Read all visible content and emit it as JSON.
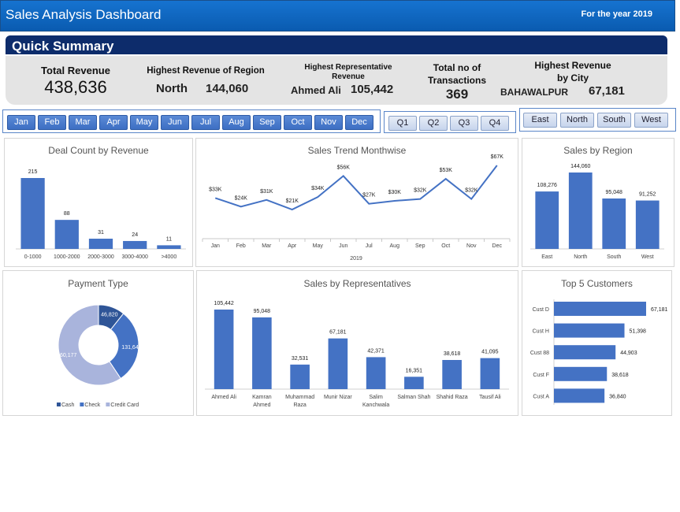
{
  "header": {
    "title": "Sales Analysis Dashboard",
    "year_label": "For the year 2019"
  },
  "summary": {
    "section_title": "Quick Summary",
    "total_revenue": {
      "label": "Total Revenue",
      "value": "438,636"
    },
    "highest_region": {
      "label": "Highest Revenue of Region",
      "name": "North",
      "value": "144,060"
    },
    "highest_rep": {
      "label_line1": "Highest Representative",
      "label_line2": "Revenue",
      "name": "Ahmed Ali",
      "value": "105,442"
    },
    "transactions": {
      "label_line1": "Total no of",
      "label_line2": "Transactions",
      "value": "369"
    },
    "highest_city": {
      "label_line1": "Highest Revenue",
      "label_line2": "by City",
      "name": "BAHAWALPUR",
      "value": "67,181"
    }
  },
  "slicers": {
    "months": [
      "Jan",
      "Feb",
      "Mar",
      "Apr",
      "May",
      "Jun",
      "Jul",
      "Aug",
      "Sep",
      "Oct",
      "Nov",
      "Dec"
    ],
    "quarters": [
      "Q1",
      "Q2",
      "Q3",
      "Q4"
    ],
    "regions": [
      "East",
      "North",
      "South",
      "West"
    ]
  },
  "colors": {
    "bar": "#4472c4",
    "navy": "#0d2c6b",
    "cash": "#2f5597",
    "check": "#4472c4",
    "credit": "#a9b4dc"
  },
  "chart_data": [
    {
      "id": "deal_count",
      "type": "bar",
      "title": "Deal Count by Revenue",
      "categories": [
        "0-1000",
        "1000-2000",
        "2000-3000",
        "3000-4000",
        ">4000"
      ],
      "values": [
        215,
        88,
        31,
        24,
        11
      ],
      "labels": [
        "215",
        "88",
        "31",
        "24",
        "11"
      ]
    },
    {
      "id": "sales_trend",
      "type": "line",
      "title": "Sales Trend Monthwise",
      "categories": [
        "Jan",
        "Feb",
        "Mar",
        "Apr",
        "May",
        "Jun",
        "Jul",
        "Aug",
        "Sep",
        "Oct",
        "Nov",
        "Dec"
      ],
      "values": [
        33,
        24,
        31,
        21,
        34,
        56,
        27,
        30,
        32,
        53,
        32,
        67
      ],
      "labels": [
        "$33K",
        "$24K",
        "$31K",
        "$21K",
        "$34K",
        "$56K",
        "$27K",
        "$30K",
        "$32K",
        "$53K",
        "$32K",
        "$67K"
      ],
      "xlabel": "2019"
    },
    {
      "id": "sales_region",
      "type": "bar",
      "title": "Sales by Region",
      "categories": [
        "East",
        "North",
        "South",
        "West"
      ],
      "values": [
        108276,
        144060,
        95048,
        91252
      ],
      "labels": [
        "108,276",
        "144,060",
        "95,048",
        "91,252"
      ]
    },
    {
      "id": "payment_type",
      "type": "pie",
      "title": "Payment Type",
      "categories": [
        "Cash",
        "Check",
        "Credit Card"
      ],
      "values": [
        46820,
        131640,
        260177
      ],
      "labels": [
        "46,820",
        "131,640",
        "260,177"
      ],
      "legend": "bottom"
    },
    {
      "id": "sales_reps",
      "type": "bar",
      "title": "Sales by Representatives",
      "categories": [
        "Ahmed Ali",
        "Kamran Ahmed",
        "Muhammad Raza",
        "Munir Nizar",
        "Salim Kanchwala",
        "Salman Shah",
        "Shahid Raza",
        "Tausif Ali"
      ],
      "values": [
        105442,
        95048,
        32531,
        67181,
        42371,
        16351,
        38618,
        41095
      ],
      "labels": [
        "105,442",
        "95,048",
        "32,531",
        "67,181",
        "42,371",
        "16,351",
        "38,618",
        "41,095"
      ]
    },
    {
      "id": "top_customers",
      "type": "bar",
      "orientation": "horizontal",
      "title": "Top 5 Customers",
      "categories": [
        "Cust D",
        "Cust H",
        "Cust 88",
        "Cust F",
        "Cust A"
      ],
      "values": [
        67181,
        51398,
        44903,
        38618,
        36840
      ],
      "labels": [
        "67,181",
        "51,398",
        "44,903",
        "38,618",
        "36,840"
      ]
    }
  ]
}
